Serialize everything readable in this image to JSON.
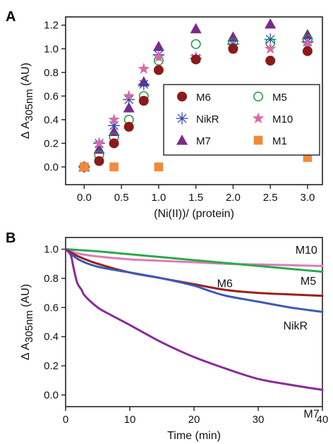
{
  "chart_data": [
    {
      "panel": "A",
      "type": "scatter",
      "xlabel": "(Ni(II))/ (protein)",
      "ylabel_main": "Δ A",
      "ylabel_sub": "305nm",
      "ylabel_unit": " (AU)",
      "xlim": [
        -0.25,
        3.2
      ],
      "ylim": [
        -0.15,
        1.27
      ],
      "xticks": [
        "0.0",
        "0.5",
        "1.0",
        "1.5",
        "2.0",
        "2.5",
        "3.0"
      ],
      "xtick_values": [
        0,
        0.5,
        1.0,
        1.5,
        2.0,
        2.5,
        3.0
      ],
      "yticks": [
        "0.0",
        "0.2",
        "0.4",
        "0.6",
        "0.8",
        "1.0",
        "1.2"
      ],
      "ytick_values": [
        0,
        0.2,
        0.4,
        0.6,
        0.8,
        1.0,
        1.2
      ],
      "legend_position": "right",
      "series": [
        {
          "name": "M6",
          "marker": "filled-circle",
          "color": "#8b1a1a",
          "x": [
            0.0,
            0.2,
            0.4,
            0.6,
            0.8,
            1.0,
            1.5,
            2.0,
            2.5,
            3.0
          ],
          "y": [
            0.0,
            0.05,
            0.2,
            0.34,
            0.56,
            0.82,
            0.91,
            1.0,
            0.9,
            0.98
          ]
        },
        {
          "name": "M5",
          "marker": "open-circle",
          "color": "#1a9a3a",
          "x": [
            0.0,
            0.2,
            0.4,
            0.6,
            0.8,
            1.0,
            1.5,
            2.0,
            2.5,
            3.0
          ],
          "y": [
            0.0,
            0.1,
            0.25,
            0.4,
            0.6,
            0.9,
            1.04,
            1.05,
            1.05,
            1.08
          ]
        },
        {
          "name": "NikR",
          "marker": "asterisk",
          "color": "#2a4aa8",
          "x": [
            0.0,
            0.2,
            0.4,
            0.6,
            0.8,
            1.0,
            1.5,
            2.0,
            2.5,
            3.0
          ],
          "y": [
            0.0,
            0.2,
            0.35,
            0.57,
            0.7,
            0.95,
            0.92,
            1.04,
            1.08,
            1.06
          ]
        },
        {
          "name": "M10",
          "marker": "star",
          "color": "#d86aa8",
          "x": [
            0.0,
            0.2,
            0.4,
            0.6,
            0.8,
            1.0,
            1.5,
            2.0,
            2.5,
            3.0
          ],
          "y": [
            0.0,
            0.2,
            0.4,
            0.6,
            0.83,
            0.93,
            0.93,
            1.0,
            1.0,
            1.04
          ]
        },
        {
          "name": "M7",
          "marker": "triangle",
          "color": "#7a2a8a",
          "x": [
            0.0,
            0.2,
            0.4,
            0.6,
            0.8,
            1.0,
            1.5,
            2.0,
            2.5,
            3.0
          ],
          "y": [
            0.0,
            0.15,
            0.3,
            0.5,
            0.72,
            1.02,
            1.17,
            1.1,
            1.21,
            1.12
          ]
        },
        {
          "name": "M1",
          "marker": "square",
          "color": "#f08a3a",
          "x": [
            0.0,
            0.4,
            1.0,
            3.0
          ],
          "y": [
            0.0,
            0.0,
            0.0,
            0.08
          ]
        }
      ]
    },
    {
      "panel": "B",
      "type": "line",
      "xlabel": "Time (min)",
      "ylabel_main": "Δ A",
      "ylabel_sub": "305nm",
      "ylabel_unit": " (AU)",
      "xlim": [
        0,
        40
      ],
      "ylim": [
        -0.08,
        1.08
      ],
      "xticks": [
        "0",
        "10",
        "20",
        "30",
        "40"
      ],
      "xtick_values": [
        0,
        10,
        20,
        30,
        40
      ],
      "yticks": [
        "0.0",
        "0.2",
        "0.4",
        "0.6",
        "0.8",
        "1.0"
      ],
      "ytick_values": [
        0,
        0.2,
        0.4,
        0.6,
        0.8,
        1.0
      ],
      "series": [
        {
          "name": "M10",
          "color": "#e07ab8",
          "x": [
            0,
            2,
            5,
            10,
            15,
            20,
            25,
            30,
            35,
            40
          ],
          "y": [
            1.0,
            0.97,
            0.95,
            0.93,
            0.92,
            0.91,
            0.9,
            0.895,
            0.89,
            0.885
          ],
          "label_pos": [
            37.5,
            0.97
          ]
        },
        {
          "name": "M5",
          "color": "#2aaa4a",
          "x": [
            0,
            5,
            10,
            15,
            20,
            25,
            30,
            35,
            40
          ],
          "y": [
            1.0,
            0.985,
            0.965,
            0.945,
            0.925,
            0.905,
            0.885,
            0.865,
            0.845
          ],
          "label_pos": [
            37.8,
            0.755
          ]
        },
        {
          "name": "M6",
          "color": "#9a1e1e",
          "x": [
            0,
            2,
            5,
            10,
            15,
            20,
            25,
            30,
            35,
            40
          ],
          "y": [
            1.0,
            0.95,
            0.9,
            0.84,
            0.8,
            0.76,
            0.72,
            0.7,
            0.69,
            0.68
          ],
          "label_pos": [
            24.8,
            0.74
          ]
        },
        {
          "name": "NikR",
          "color": "#3a5ab8",
          "x": [
            0,
            2,
            5,
            10,
            15,
            20,
            22,
            25,
            30,
            35,
            40
          ],
          "y": [
            1.0,
            0.93,
            0.88,
            0.84,
            0.8,
            0.75,
            0.72,
            0.68,
            0.64,
            0.6,
            0.57
          ],
          "label_pos": [
            35.8,
            0.45
          ]
        },
        {
          "name": "M7",
          "color": "#8a2a9a",
          "x": [
            0,
            0.8,
            1.2,
            1.8,
            2.5,
            3,
            5,
            7,
            10,
            15,
            20,
            25,
            30,
            35,
            40
          ],
          "y": [
            1.0,
            0.96,
            0.88,
            0.77,
            0.72,
            0.68,
            0.6,
            0.55,
            0.48,
            0.36,
            0.26,
            0.18,
            0.11,
            0.07,
            0.035
          ],
          "label_pos": [
            38.3,
            -0.155
          ]
        }
      ]
    }
  ]
}
